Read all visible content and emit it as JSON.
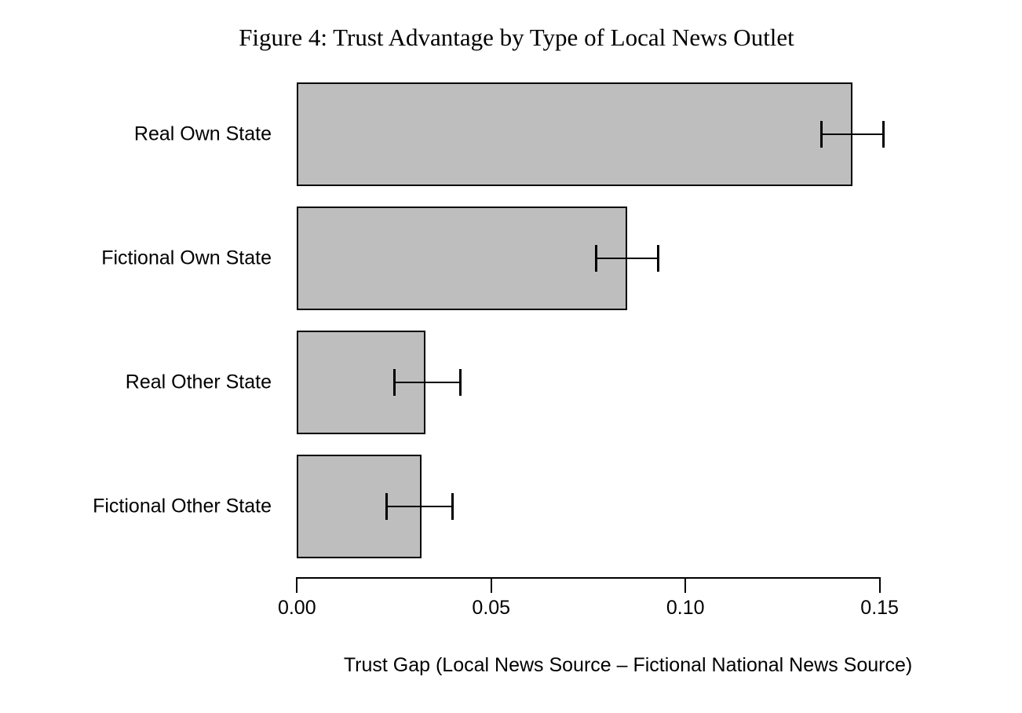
{
  "chart_data": {
    "type": "bar",
    "orientation": "horizontal",
    "title": "Figure 4: Trust Advantage by Type of Local News Outlet",
    "xlabel": "Trust Gap (Local News Source – Fictional National News Source)",
    "ylabel": "",
    "categories": [
      "Real Own State",
      "Fictional Own State",
      "Real Other State",
      "Fictional Other State"
    ],
    "values": [
      0.143,
      0.085,
      0.033,
      0.032
    ],
    "error_bars": [
      {
        "low": 0.135,
        "high": 0.151
      },
      {
        "low": 0.077,
        "high": 0.093
      },
      {
        "low": 0.025,
        "high": 0.042
      },
      {
        "low": 0.023,
        "high": 0.04
      }
    ],
    "xlim": [
      0,
      0.15
    ],
    "x_ticks": [
      0,
      0.05,
      0.1,
      0.15
    ],
    "x_tick_labels": [
      "0.00",
      "0.05",
      "0.10",
      "0.15"
    ],
    "grid": false,
    "legend": null,
    "colors": {
      "bar_fill": "#bebebe",
      "bar_border": "#000000",
      "error_bar": "#000000",
      "axis": "#000000",
      "text": "#000000",
      "background": "#ffffff"
    }
  }
}
